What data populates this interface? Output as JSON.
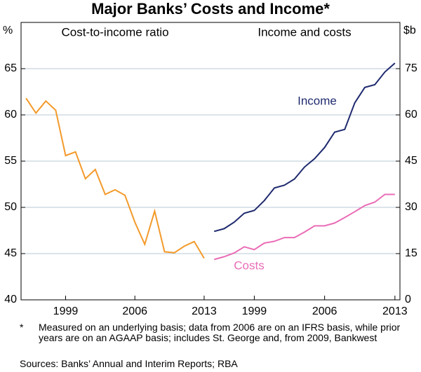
{
  "title": "Major Banks’ Costs and Income*",
  "chart_data": [
    {
      "type": "line",
      "title": "Cost-to-income ratio",
      "y_unit": "%",
      "x": [
        1995,
        1996,
        1997,
        1998,
        1999,
        2000,
        2001,
        2002,
        2003,
        2004,
        2005,
        2006,
        2007,
        2008,
        2009,
        2010,
        2011,
        2012,
        2013
      ],
      "values": [
        61.8,
        60.2,
        61.5,
        60.5,
        55.6,
        56.0,
        53.1,
        54.1,
        51.4,
        51.9,
        51.3,
        48.4,
        46.0,
        49.6,
        45.2,
        45.1,
        45.8,
        46.3,
        44.5
      ],
      "color": "#f39a2b",
      "xlim": [
        1994.5,
        2013.5
      ],
      "xticks": [
        1999,
        2006,
        2013
      ],
      "ylim": [
        40,
        70
      ],
      "yticks": [
        40,
        45,
        50,
        55,
        60,
        65
      ],
      "y_axis_side": "left",
      "grid": true
    },
    {
      "type": "line",
      "title": "Income and costs",
      "y_unit": "$b",
      "x": [
        1995,
        1996,
        1997,
        1998,
        1999,
        2000,
        2001,
        2002,
        2003,
        2004,
        2005,
        2006,
        2007,
        2008,
        2009,
        2010,
        2011,
        2012,
        2013
      ],
      "series": [
        {
          "name": "Income",
          "color": "#1f2a6e",
          "values": [
            22.2,
            23.1,
            25.2,
            28.1,
            29.0,
            32.2,
            36.3,
            37.2,
            39.2,
            43.1,
            45.8,
            49.4,
            54.4,
            55.3,
            63.9,
            68.9,
            69.8,
            73.9,
            76.8
          ]
        },
        {
          "name": "Costs",
          "color": "#ea6db6",
          "values": [
            13.1,
            14.0,
            15.2,
            17.2,
            16.3,
            18.4,
            19.0,
            20.2,
            20.2,
            22.0,
            24.0,
            24.0,
            24.9,
            26.7,
            28.6,
            30.6,
            31.7,
            34.2,
            34.2
          ]
        }
      ],
      "xlim": [
        1994.5,
        2013.5
      ],
      "xticks": [
        1999,
        2006,
        2013
      ],
      "ylim": [
        0,
        90
      ],
      "yticks": [
        0,
        15,
        30,
        45,
        60,
        75
      ],
      "y_axis_side": "right",
      "grid": true
    }
  ],
  "footnote": {
    "marker": "*",
    "text": "Measured on an underlying basis; data from 2006 are on an IFRS basis, while prior years are on an AGAAP basis; includes St. George and, from 2009, Bankwest"
  },
  "sources": "Sources: Banks’ Annual and Interim Reports; RBA"
}
